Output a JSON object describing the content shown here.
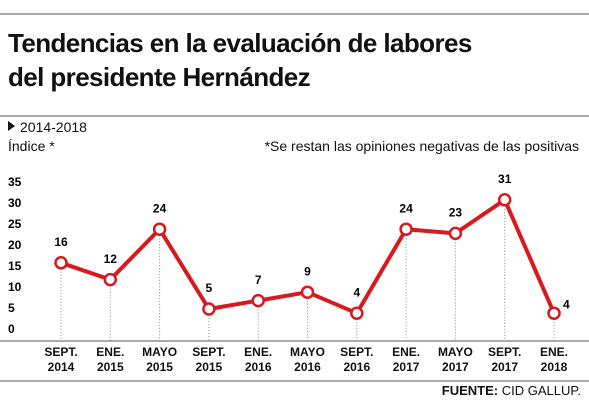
{
  "chart_data": {
    "type": "line",
    "title": "Tendencias en la evaluación de labores del presidente Hernández",
    "subtitle": "2014-2018",
    "y_label": "Índice *",
    "note": "*Se restan las opiniones negativas de las positivas",
    "source_label": "FUENTE:",
    "source": "CID GALLUP.",
    "categories": [
      "SEPT. 2014",
      "ENE. 2015",
      "MAYO 2015",
      "SEPT. 2015",
      "ENE. 2016",
      "MAYO 2016",
      "SEPT. 2016",
      "ENE. 2017",
      "MAYO 2017",
      "SEPT. 2017",
      "ENE. 2018"
    ],
    "values": [
      16,
      12,
      24,
      5,
      7,
      9,
      4,
      24,
      23,
      31,
      4
    ],
    "color": "#d71920",
    "ylim": [
      0,
      35
    ],
    "yticks": [
      0,
      5,
      10,
      15,
      20,
      25,
      30,
      35
    ]
  }
}
